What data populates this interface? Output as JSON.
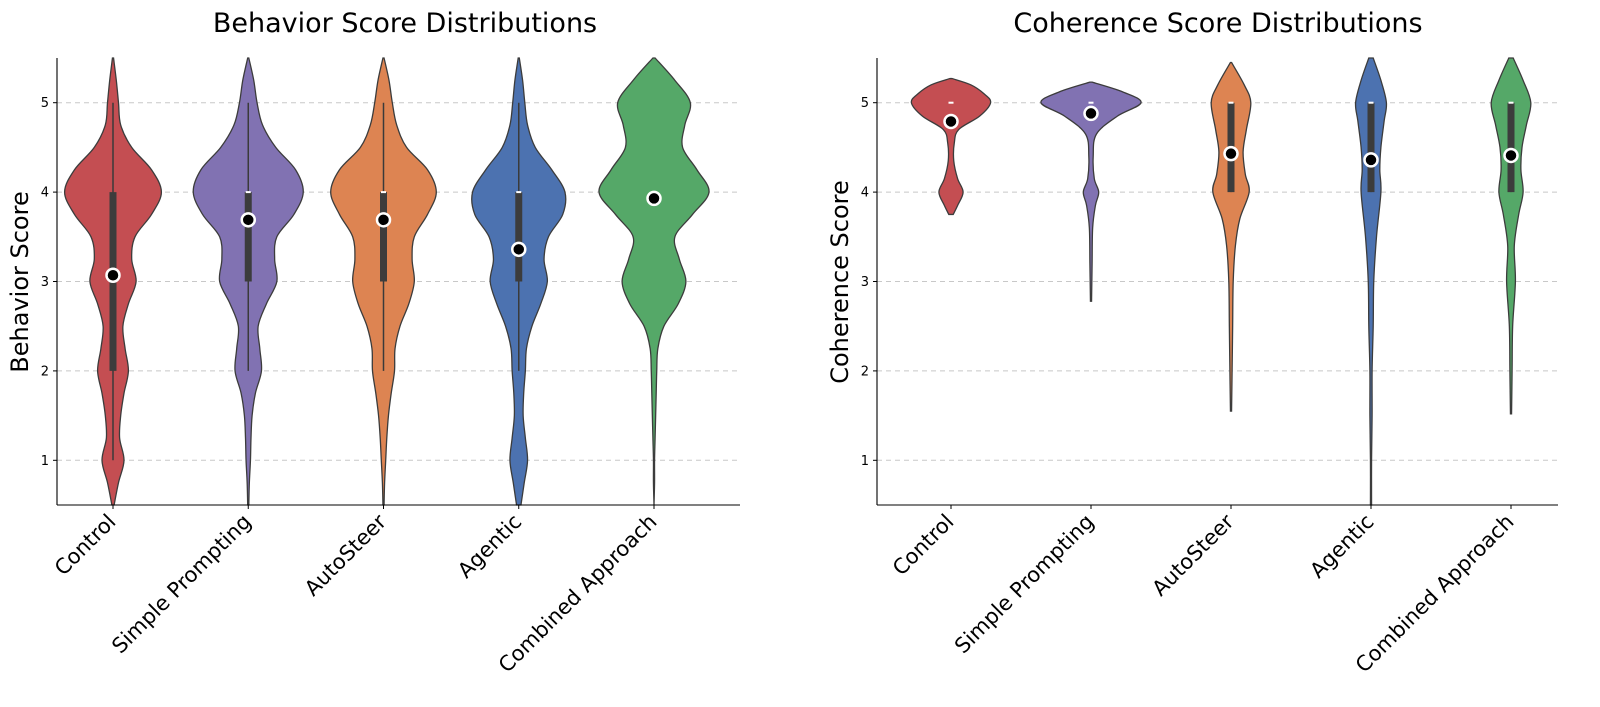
{
  "chart_data": [
    {
      "type": "violin",
      "title": "Behavior Score Distributions",
      "xlabel": "",
      "ylabel": "Behavior Score",
      "ylim": [
        0.5,
        5.5
      ],
      "yticks": [
        "1",
        "2",
        "3",
        "4",
        "5"
      ],
      "grid": "y-dashed",
      "categories": [
        "Control",
        "Simple Prompting",
        "AutoSteer",
        "Agentic",
        "Combined Approach"
      ],
      "colors": [
        "#c44e52",
        "#8172b2",
        "#dd8452",
        "#4c72b0",
        "#55a868"
      ],
      "means": [
        3.07,
        3.69,
        3.69,
        3.36,
        3.93
      ],
      "medians": [
        3,
        4,
        4,
        4,
        4
      ],
      "q1": [
        2,
        3,
        3,
        3,
        4
      ],
      "q3": [
        4,
        4,
        4,
        4,
        4
      ],
      "whisker_low": [
        1,
        2,
        2,
        2,
        4
      ],
      "whisker_high": [
        5,
        5,
        5,
        5,
        4
      ],
      "density_range": [
        [
          0.5,
          5.5
        ],
        [
          0.5,
          5.5
        ],
        [
          0.5,
          5.5
        ],
        [
          0.5,
          5.5
        ],
        [
          0.5,
          5.5
        ]
      ],
      "density": [
        [
          [
            0.5,
            0.02
          ],
          [
            0.75,
            0.1
          ],
          [
            1.0,
            0.2
          ],
          [
            1.25,
            0.12
          ],
          [
            1.5,
            0.14
          ],
          [
            1.75,
            0.2
          ],
          [
            2.0,
            0.28
          ],
          [
            2.25,
            0.22
          ],
          [
            2.5,
            0.18
          ],
          [
            2.75,
            0.28
          ],
          [
            3.0,
            0.42
          ],
          [
            3.25,
            0.34
          ],
          [
            3.5,
            0.4
          ],
          [
            3.75,
            0.7
          ],
          [
            4.0,
            0.88
          ],
          [
            4.25,
            0.7
          ],
          [
            4.5,
            0.34
          ],
          [
            4.75,
            0.14
          ],
          [
            5.0,
            0.1
          ],
          [
            5.25,
            0.06
          ],
          [
            5.5,
            0.01
          ]
        ],
        [
          [
            0.5,
            0.01
          ],
          [
            0.75,
            0.02
          ],
          [
            1.0,
            0.04
          ],
          [
            1.25,
            0.05
          ],
          [
            1.5,
            0.07
          ],
          [
            1.75,
            0.13
          ],
          [
            2.0,
            0.24
          ],
          [
            2.25,
            0.21
          ],
          [
            2.5,
            0.18
          ],
          [
            2.75,
            0.33
          ],
          [
            3.0,
            0.52
          ],
          [
            3.25,
            0.48
          ],
          [
            3.5,
            0.52
          ],
          [
            3.75,
            0.83
          ],
          [
            4.0,
            1.0
          ],
          [
            4.25,
            0.86
          ],
          [
            4.5,
            0.5
          ],
          [
            4.75,
            0.26
          ],
          [
            5.0,
            0.16
          ],
          [
            5.25,
            0.1
          ],
          [
            5.5,
            0.01
          ]
        ],
        [
          [
            0.5,
            0.01
          ],
          [
            0.75,
            0.02
          ],
          [
            1.0,
            0.04
          ],
          [
            1.25,
            0.06
          ],
          [
            1.5,
            0.09
          ],
          [
            1.75,
            0.14
          ],
          [
            2.0,
            0.2
          ],
          [
            2.25,
            0.21
          ],
          [
            2.5,
            0.3
          ],
          [
            2.75,
            0.46
          ],
          [
            3.0,
            0.56
          ],
          [
            3.25,
            0.52
          ],
          [
            3.5,
            0.56
          ],
          [
            3.75,
            0.8
          ],
          [
            4.0,
            0.96
          ],
          [
            4.25,
            0.8
          ],
          [
            4.5,
            0.42
          ],
          [
            4.75,
            0.24
          ],
          [
            5.0,
            0.16
          ],
          [
            5.25,
            0.1
          ],
          [
            5.5,
            0.01
          ]
        ],
        [
          [
            0.5,
            0.04
          ],
          [
            0.75,
            0.1
          ],
          [
            1.0,
            0.16
          ],
          [
            1.25,
            0.12
          ],
          [
            1.5,
            0.08
          ],
          [
            1.75,
            0.09
          ],
          [
            2.0,
            0.12
          ],
          [
            2.25,
            0.14
          ],
          [
            2.5,
            0.24
          ],
          [
            2.75,
            0.4
          ],
          [
            3.0,
            0.52
          ],
          [
            3.25,
            0.46
          ],
          [
            3.5,
            0.54
          ],
          [
            3.75,
            0.8
          ],
          [
            4.0,
            0.84
          ],
          [
            4.25,
            0.6
          ],
          [
            4.5,
            0.3
          ],
          [
            4.75,
            0.16
          ],
          [
            5.0,
            0.11
          ],
          [
            5.25,
            0.07
          ],
          [
            5.5,
            0.01
          ]
        ],
        [
          [
            0.5,
            0.0
          ],
          [
            0.75,
            0.01
          ],
          [
            1.0,
            0.01
          ],
          [
            1.25,
            0.02
          ],
          [
            1.5,
            0.03
          ],
          [
            1.75,
            0.04
          ],
          [
            2.0,
            0.05
          ],
          [
            2.25,
            0.07
          ],
          [
            2.5,
            0.18
          ],
          [
            2.75,
            0.44
          ],
          [
            3.0,
            0.58
          ],
          [
            3.25,
            0.46
          ],
          [
            3.5,
            0.38
          ],
          [
            3.75,
            0.7
          ],
          [
            4.0,
            1.0
          ],
          [
            4.25,
            0.78
          ],
          [
            4.5,
            0.52
          ],
          [
            4.75,
            0.56
          ],
          [
            5.0,
            0.66
          ],
          [
            5.25,
            0.38
          ],
          [
            5.5,
            0.02
          ]
        ]
      ]
    },
    {
      "type": "violin",
      "title": "Coherence Score Distributions",
      "xlabel": "",
      "ylabel": "Coherence Score",
      "ylim": [
        0.5,
        5.5
      ],
      "yticks": [
        "1",
        "2",
        "3",
        "4",
        "5"
      ],
      "grid": "y-dashed",
      "categories": [
        "Control",
        "Simple Prompting",
        "AutoSteer",
        "Agentic",
        "Combined Approach"
      ],
      "colors": [
        "#c44e52",
        "#8172b2",
        "#dd8452",
        "#4c72b0",
        "#55a868"
      ],
      "means": [
        4.79,
        4.88,
        4.43,
        4.36,
        4.41
      ],
      "medians": [
        5,
        5,
        5,
        5,
        5
      ],
      "q1": [
        5,
        5,
        4,
        4,
        4
      ],
      "q3": [
        5,
        5,
        5,
        5,
        5
      ],
      "whisker_low": [
        5,
        5,
        4,
        4,
        4
      ],
      "whisker_high": [
        5,
        5,
        5,
        5,
        5
      ],
      "density_range": [
        [
          3.75,
          5.27
        ],
        [
          2.78,
          5.23
        ],
        [
          1.55,
          5.45
        ],
        [
          0.5,
          5.5
        ],
        [
          1.52,
          5.5
        ]
      ],
      "density": [
        [
          [
            3.75,
            0.04
          ],
          [
            3.85,
            0.12
          ],
          [
            4.0,
            0.22
          ],
          [
            4.15,
            0.12
          ],
          [
            4.35,
            0.05
          ],
          [
            4.55,
            0.06
          ],
          [
            4.7,
            0.14
          ],
          [
            4.85,
            0.52
          ],
          [
            5.0,
            0.72
          ],
          [
            5.1,
            0.6
          ],
          [
            5.2,
            0.36
          ],
          [
            5.27,
            0.02
          ]
        ],
        [
          [
            2.78,
            0.01
          ],
          [
            3.2,
            0.02
          ],
          [
            3.6,
            0.03
          ],
          [
            3.85,
            0.08
          ],
          [
            4.0,
            0.14
          ],
          [
            4.15,
            0.06
          ],
          [
            4.4,
            0.04
          ],
          [
            4.65,
            0.1
          ],
          [
            4.85,
            0.48
          ],
          [
            5.0,
            0.91
          ],
          [
            5.12,
            0.58
          ],
          [
            5.23,
            0.02
          ]
        ],
        [
          [
            1.55,
            0.01
          ],
          [
            2.0,
            0.02
          ],
          [
            2.5,
            0.03
          ],
          [
            3.0,
            0.04
          ],
          [
            3.4,
            0.08
          ],
          [
            3.7,
            0.16
          ],
          [
            4.0,
            0.33
          ],
          [
            4.2,
            0.26
          ],
          [
            4.45,
            0.22
          ],
          [
            4.7,
            0.28
          ],
          [
            5.0,
            0.36
          ],
          [
            5.2,
            0.24
          ],
          [
            5.45,
            0.01
          ]
        ],
        [
          [
            0.5,
            0.01
          ],
          [
            1.0,
            0.01
          ],
          [
            1.5,
            0.02
          ],
          [
            2.0,
            0.02
          ],
          [
            2.5,
            0.04
          ],
          [
            3.0,
            0.05
          ],
          [
            3.5,
            0.1
          ],
          [
            4.0,
            0.18
          ],
          [
            4.25,
            0.16
          ],
          [
            4.5,
            0.18
          ],
          [
            4.8,
            0.24
          ],
          [
            5.0,
            0.28
          ],
          [
            5.25,
            0.18
          ],
          [
            5.5,
            0.04
          ]
        ],
        [
          [
            1.52,
            0.01
          ],
          [
            2.0,
            0.02
          ],
          [
            2.5,
            0.03
          ],
          [
            3.0,
            0.08
          ],
          [
            3.4,
            0.06
          ],
          [
            3.75,
            0.14
          ],
          [
            4.0,
            0.22
          ],
          [
            4.25,
            0.18
          ],
          [
            4.5,
            0.2
          ],
          [
            4.75,
            0.28
          ],
          [
            5.0,
            0.36
          ],
          [
            5.25,
            0.22
          ],
          [
            5.5,
            0.04
          ]
        ]
      ]
    }
  ]
}
